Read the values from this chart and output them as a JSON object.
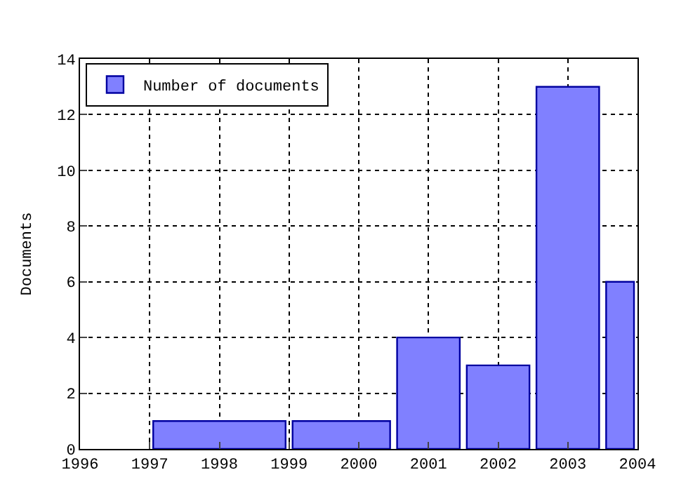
{
  "chart_data": {
    "type": "histogram",
    "ylabel": "Documents",
    "bins": [
      1997,
      1999,
      2000.5,
      2001.5,
      2002.5,
      2003.5,
      2004
    ],
    "series": [
      {
        "name": "Number of documents",
        "color": "#8080ff",
        "values": [
          1,
          1,
          4,
          3,
          13,
          6
        ]
      }
    ],
    "xlim": [
      1996,
      2004
    ],
    "xticks": [
      1996,
      1997,
      1998,
      1999,
      2000,
      2001,
      2002,
      2003,
      2004
    ],
    "ylim": [
      0,
      14
    ],
    "yticks": [
      0,
      2,
      4,
      6,
      8,
      10,
      12,
      14
    ],
    "grid": true,
    "legend": "top left"
  }
}
